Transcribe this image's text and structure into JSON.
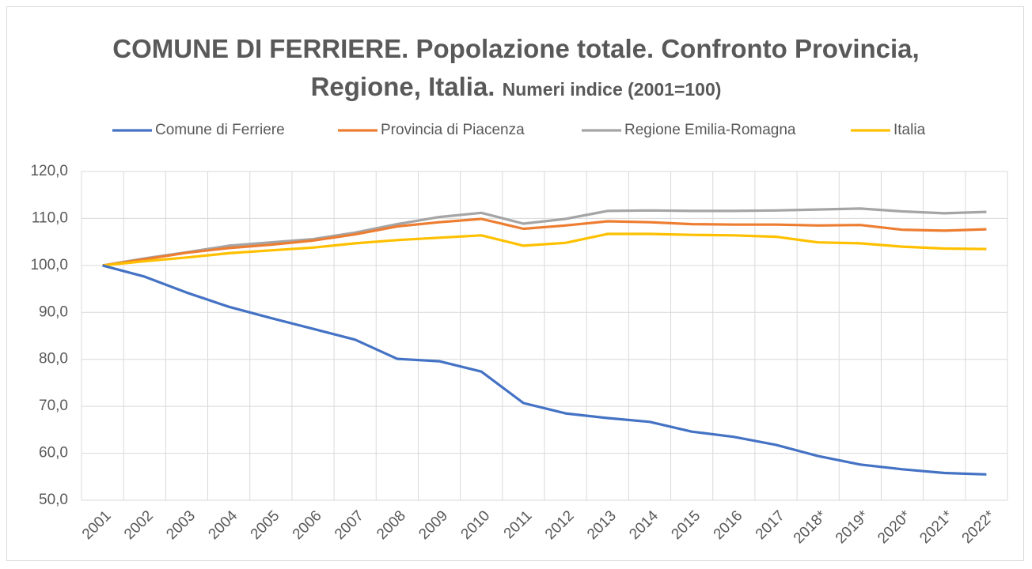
{
  "chart_data": {
    "type": "line",
    "title": "COMUNE DI FERRIERE. Popolazione totale. Confronto Provincia, Regione, Italia.",
    "subtitle": "Numeri indice (2001=100)",
    "categories": [
      "2001",
      "2002",
      "2003",
      "2004",
      "2005",
      "2006",
      "2007",
      "2008",
      "2009",
      "2010",
      "2011",
      "2012",
      "2013",
      "2014",
      "2015",
      "2016",
      "2017",
      "2018*",
      "2019*",
      "2020*",
      "2021*",
      "2022*"
    ],
    "series": [
      {
        "name": "Comune di Ferriere",
        "color": "#4472c4",
        "values": [
          100,
          97.6,
          94.2,
          91.2,
          88.8,
          86.5,
          84.2,
          80.1,
          79.6,
          77.4,
          70.7,
          68.5,
          67.5,
          66.7,
          64.6,
          63.5,
          61.8,
          59.4,
          57.6,
          56.6,
          55.8,
          55.5
        ]
      },
      {
        "name": "Provincia di Piacenza",
        "color": "#ed7d31",
        "values": [
          100,
          101.3,
          102.7,
          103.7,
          104.4,
          105.3,
          106.6,
          108.3,
          109.2,
          109.9,
          107.8,
          108.5,
          109.4,
          109.2,
          108.8,
          108.7,
          108.7,
          108.5,
          108.6,
          107.6,
          107.4,
          107.7
        ]
      },
      {
        "name": "Regione Emilia-Romagna",
        "color": "#a5a5a5",
        "values": [
          100,
          101.5,
          102.8,
          104.2,
          104.9,
          105.6,
          107.0,
          108.8,
          110.3,
          111.2,
          108.9,
          109.9,
          111.6,
          111.7,
          111.6,
          111.6,
          111.7,
          111.9,
          112.1,
          111.5,
          111.1,
          111.4
        ]
      },
      {
        "name": "Italia",
        "color": "#ffc000",
        "values": [
          100,
          100.9,
          101.7,
          102.6,
          103.2,
          103.8,
          104.7,
          105.4,
          105.9,
          106.4,
          104.2,
          104.8,
          106.7,
          106.7,
          106.5,
          106.4,
          106.1,
          104.9,
          104.7,
          104.0,
          103.6,
          103.5
        ]
      }
    ],
    "ylim": [
      50,
      120
    ],
    "yticks": [
      {
        "value": 50,
        "label": "50,0"
      },
      {
        "value": 60,
        "label": "60,0"
      },
      {
        "value": 70,
        "label": "70,0"
      },
      {
        "value": 80,
        "label": "80,0"
      },
      {
        "value": 90,
        "label": "90,0"
      },
      {
        "value": 100,
        "label": "100,0"
      },
      {
        "value": 110,
        "label": "110,0"
      },
      {
        "value": 120,
        "label": "120,0"
      }
    ],
    "grid": true,
    "legend": "top"
  }
}
